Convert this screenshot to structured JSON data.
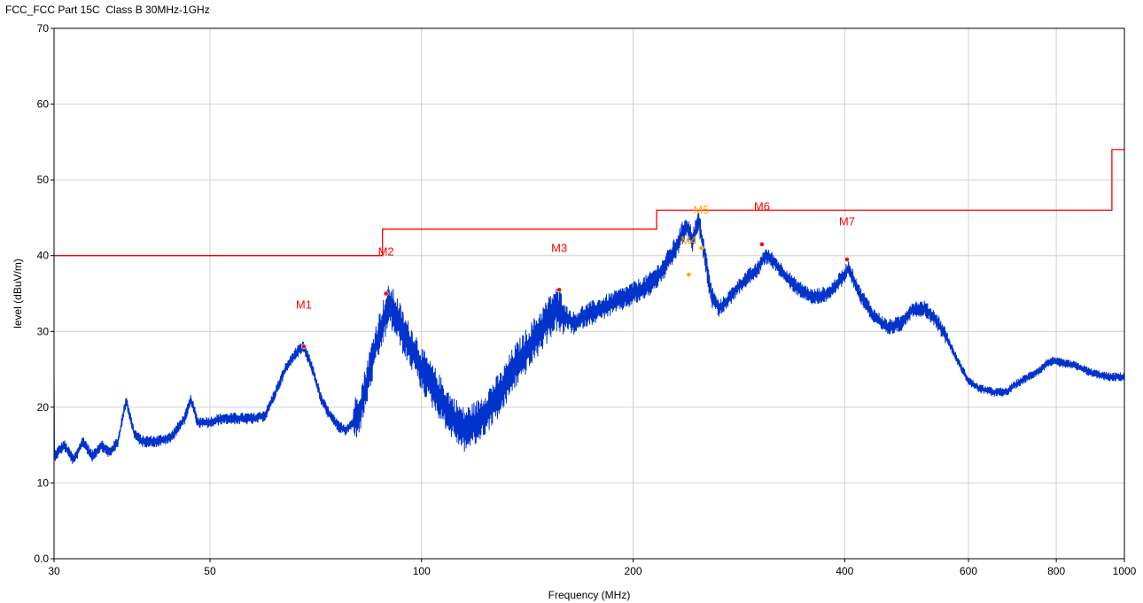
{
  "chart_data": {
    "type": "line",
    "title": "FCC_FCC Part 15C  Class B 30MHz-1GHz",
    "xlabel": "Frequency (MHz)",
    "ylabel": "level (dBuV/m)",
    "x_scale": "log",
    "xlim": [
      30,
      1000
    ],
    "ylim": [
      0,
      70
    ],
    "x_ticks": [
      30,
      50,
      100,
      200,
      400,
      600,
      800,
      1000
    ],
    "x_tick_labels": [
      "30",
      "50",
      "100",
      "200",
      "400",
      "600",
      "800",
      "1000"
    ],
    "y_ticks": [
      0,
      10,
      20,
      30,
      40,
      50,
      60,
      70
    ],
    "y_tick_labels": [
      "0.0",
      "10",
      "20",
      "30",
      "40",
      "50",
      "60",
      "70"
    ],
    "grid": true,
    "colors": {
      "trace": "#0033cc",
      "limit": "#ff0000",
      "marker_peak": "#ff0000",
      "marker_qp": "#ffa500"
    },
    "series": [
      {
        "role": "limit",
        "points": [
          [
            30,
            40
          ],
          [
            88,
            40
          ],
          [
            88,
            43.5
          ],
          [
            216,
            43.5
          ],
          [
            216,
            46
          ],
          [
            960,
            46
          ],
          [
            960,
            54
          ],
          [
            1000,
            54
          ]
        ]
      },
      {
        "role": "measurement",
        "points": [
          [
            30,
            13.5
          ],
          [
            31,
            15
          ],
          [
            32,
            13
          ],
          [
            33,
            15.5
          ],
          [
            34,
            13.5
          ],
          [
            35,
            15
          ],
          [
            36,
            14
          ],
          [
            37,
            15.5
          ],
          [
            38,
            21
          ],
          [
            39,
            16.5
          ],
          [
            40,
            15.5
          ],
          [
            42,
            15.5
          ],
          [
            44,
            16
          ],
          [
            46,
            18.5
          ],
          [
            47,
            21
          ],
          [
            48,
            18
          ],
          [
            50,
            18
          ],
          [
            52,
            18.5
          ],
          [
            55,
            18.5
          ],
          [
            58,
            18.5
          ],
          [
            60,
            19
          ],
          [
            62,
            22
          ],
          [
            64,
            25
          ],
          [
            66,
            27
          ],
          [
            68,
            28
          ],
          [
            70,
            25
          ],
          [
            72,
            21
          ],
          [
            74,
            19
          ],
          [
            76,
            17.5
          ],
          [
            78,
            17
          ],
          [
            80,
            18
          ],
          [
            82,
            20
          ],
          [
            84,
            24
          ],
          [
            86,
            28
          ],
          [
            88,
            31
          ],
          [
            90,
            33.5
          ],
          [
            92,
            32
          ],
          [
            95,
            29
          ],
          [
            98,
            27
          ],
          [
            100,
            25
          ],
          [
            105,
            22
          ],
          [
            110,
            19
          ],
          [
            115,
            17
          ],
          [
            120,
            18
          ],
          [
            125,
            20
          ],
          [
            130,
            22
          ],
          [
            135,
            25
          ],
          [
            140,
            27
          ],
          [
            145,
            29
          ],
          [
            150,
            31
          ],
          [
            155,
            33
          ],
          [
            160,
            32
          ],
          [
            165,
            31
          ],
          [
            170,
            32
          ],
          [
            180,
            33
          ],
          [
            190,
            34
          ],
          [
            200,
            35
          ],
          [
            210,
            36
          ],
          [
            220,
            38
          ],
          [
            230,
            41
          ],
          [
            238,
            44
          ],
          [
            243,
            42
          ],
          [
            248,
            44.5
          ],
          [
            253,
            40
          ],
          [
            258,
            35
          ],
          [
            265,
            33
          ],
          [
            272,
            34
          ],
          [
            280,
            35.5
          ],
          [
            290,
            37
          ],
          [
            300,
            38
          ],
          [
            308,
            40
          ],
          [
            315,
            39.5
          ],
          [
            325,
            38
          ],
          [
            340,
            36
          ],
          [
            360,
            34.5
          ],
          [
            380,
            35
          ],
          [
            400,
            37.5
          ],
          [
            405,
            38.5
          ],
          [
            420,
            35
          ],
          [
            440,
            32
          ],
          [
            460,
            30.5
          ],
          [
            480,
            31
          ],
          [
            500,
            33
          ],
          [
            520,
            33
          ],
          [
            540,
            31.5
          ],
          [
            560,
            29
          ],
          [
            580,
            26
          ],
          [
            600,
            23.5
          ],
          [
            620,
            22.5
          ],
          [
            650,
            22
          ],
          [
            680,
            22
          ],
          [
            700,
            23
          ],
          [
            730,
            24
          ],
          [
            760,
            25
          ],
          [
            780,
            26
          ],
          [
            800,
            26
          ],
          [
            850,
            25.5
          ],
          [
            900,
            24.5
          ],
          [
            950,
            24
          ],
          [
            1000,
            24
          ]
        ]
      }
    ],
    "markers": [
      {
        "label": "M1",
        "freq": 68,
        "level": 28,
        "type": "peak",
        "label_level": 33
      },
      {
        "label": "M2",
        "freq": 89,
        "level": 35,
        "type": "peak",
        "label_level": 40
      },
      {
        "label": "M3",
        "freq": 157,
        "level": 35.5,
        "type": "peak",
        "label_level": 40.5
      },
      {
        "label": "M4",
        "freq": 240,
        "level": 37.5,
        "type": "qp",
        "label_level": 41.5
      },
      {
        "label": "M5",
        "freq": 250,
        "level": 41,
        "type": "qp",
        "label_level": 45.5
      },
      {
        "label": "M6",
        "freq": 305,
        "level": 41.5,
        "type": "peak",
        "label_level": 46
      },
      {
        "label": "M7",
        "freq": 403,
        "level": 39.5,
        "type": "peak",
        "label_level": 44
      }
    ]
  }
}
